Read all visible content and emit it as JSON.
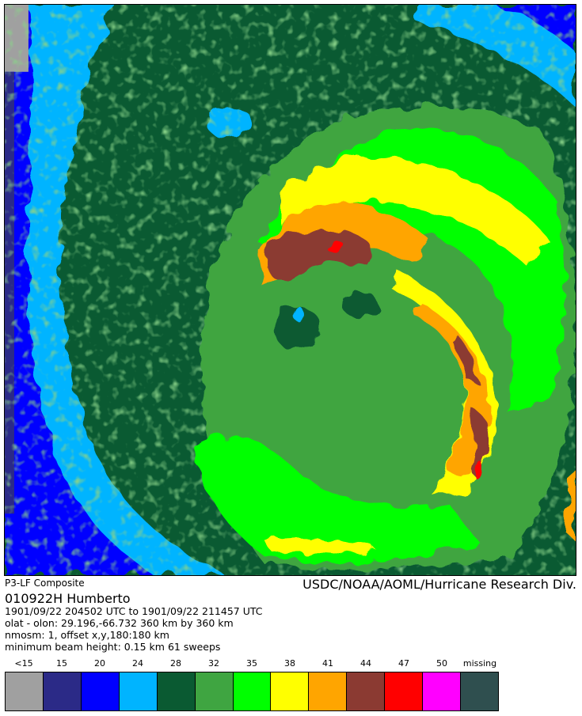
{
  "header": {
    "source": "P3-LF Composite",
    "credit": "USDC/NOAA/AOML/Hurricane Research Div.",
    "storm": "010922H   Humberto"
  },
  "metadata": {
    "time_range": "1901/09/22 204502 UTC to 1901/09/22 211457 UTC",
    "origin": "olat - olon: 29.196,-66.732  360 km by 360 km",
    "nmosm": "nmosm: 1, offset x,y,180:180 km",
    "beam": "minimum beam height: 0.15 km     61 sweeps"
  },
  "legend": [
    {
      "label": "<15",
      "color": "#a0a0a0"
    },
    {
      "label": "15",
      "color": "#2b2a87"
    },
    {
      "label": "20",
      "color": "#0000ff"
    },
    {
      "label": "24",
      "color": "#00b4ff"
    },
    {
      "label": "28",
      "color": "#0a5a32"
    },
    {
      "label": "32",
      "color": "#3fa541"
    },
    {
      "label": "35",
      "color": "#00ff00"
    },
    {
      "label": "38",
      "color": "#ffff00"
    },
    {
      "label": "41",
      "color": "#ffa500"
    },
    {
      "label": "44",
      "color": "#8b3a32"
    },
    {
      "label": "47",
      "color": "#ff0000"
    },
    {
      "label": "50",
      "color": "#ff00ff"
    },
    {
      "label": "missing",
      "color": "#2f4f4f"
    }
  ]
}
